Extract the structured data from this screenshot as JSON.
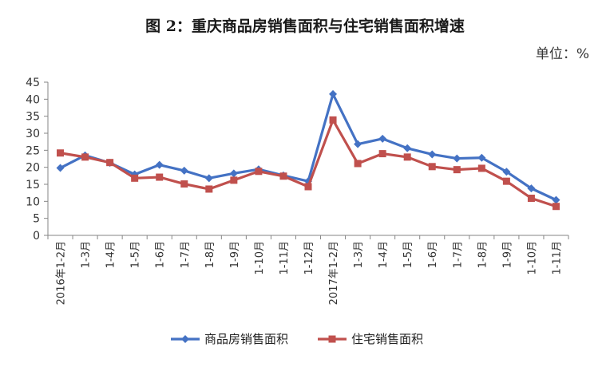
{
  "title": "图 2：重庆商品房销售面积与住宅销售面积增速",
  "unit_label": "单位：%",
  "chart_data": {
    "type": "line",
    "title": "图 2：重庆商品房销售面积与住宅销售面积增速",
    "xlabel": "",
    "ylabel": "单位：%",
    "ylim": [
      0,
      45
    ],
    "yticks": [
      0,
      5,
      10,
      15,
      20,
      25,
      30,
      35,
      40,
      45
    ],
    "categories": [
      "2016年1-2月",
      "1-3月",
      "1-4月",
      "1-5月",
      "1-6月",
      "1-7月",
      "1-8月",
      "1-9月",
      "1-10月",
      "1-11月",
      "1-12月",
      "2017年1-2月",
      "1-3月",
      "1-4月",
      "1-5月",
      "1-6月",
      "1-7月",
      "1-8月",
      "1-9月",
      "1-10月",
      "1-11月"
    ],
    "series": [
      {
        "name": "商品房销售面积",
        "color": "#4472C4",
        "marker": "diamond",
        "values": [
          19.8,
          23.5,
          21.3,
          17.9,
          20.7,
          19.0,
          16.8,
          18.2,
          19.4,
          17.6,
          15.9,
          41.5,
          26.8,
          28.4,
          25.6,
          23.8,
          22.6,
          22.8,
          18.7,
          13.8,
          10.4
        ]
      },
      {
        "name": "住宅销售面积",
        "color": "#C0504D",
        "marker": "square",
        "values": [
          24.2,
          23.0,
          21.4,
          16.8,
          17.1,
          15.1,
          13.6,
          16.2,
          18.8,
          17.4,
          14.3,
          33.9,
          21.1,
          24.0,
          23.0,
          20.2,
          19.3,
          19.7,
          15.9,
          10.9,
          8.5
        ]
      }
    ],
    "legend_position": "bottom",
    "grid": false
  }
}
